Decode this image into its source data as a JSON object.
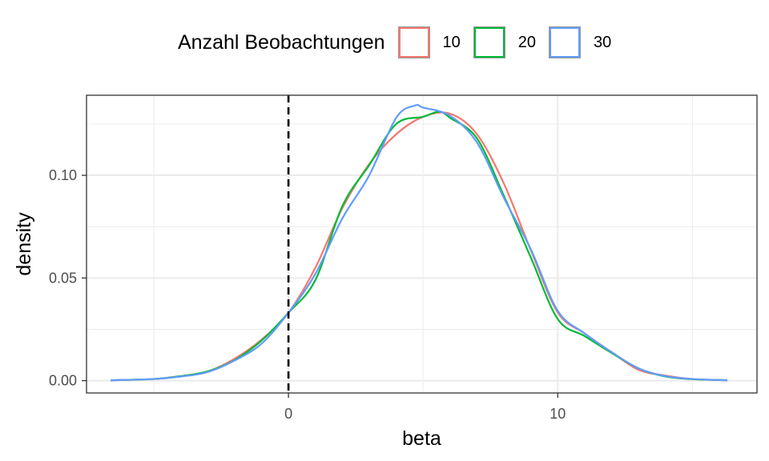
{
  "legend": {
    "title": "Anzahl Beobachtungen",
    "items": [
      {
        "label": "10",
        "color": "#F8766D"
      },
      {
        "label": "20",
        "color": "#00BA38"
      },
      {
        "label": "30",
        "color": "#619CFF"
      }
    ]
  },
  "chart_data": {
    "type": "line",
    "xlabel": "beta",
    "ylabel": "density",
    "xlim": [
      -7.5,
      17.4
    ],
    "ylim": [
      -0.006,
      0.139
    ],
    "x_ticks": [
      0,
      10
    ],
    "x_tick_labels": [
      "0",
      "10"
    ],
    "y_ticks": [
      0,
      0.05,
      0.1
    ],
    "y_tick_labels": [
      "0.00",
      "0.05",
      "0.10"
    ],
    "grid": true,
    "legend_position": "top",
    "reference_line": {
      "x": 0,
      "style": "dashed",
      "color": "#000000"
    },
    "series": [
      {
        "name": "10",
        "color": "#F8766D",
        "x": [
          -6.6,
          -5,
          -4,
          -3,
          -2,
          -1,
          0,
          1,
          2,
          3,
          4,
          5,
          6,
          7,
          8,
          9,
          10,
          11,
          12,
          13,
          14,
          15,
          16.3
        ],
        "y": [
          0.0002,
          0.0008,
          0.0022,
          0.0045,
          0.0107,
          0.02,
          0.0331,
          0.055,
          0.084,
          0.1055,
          0.12,
          0.1285,
          0.13,
          0.12,
          0.096,
          0.0635,
          0.0332,
          0.023,
          0.0139,
          0.0053,
          0.0025,
          0.0008,
          0.0002
        ]
      },
      {
        "name": "20",
        "color": "#00BA38",
        "x": [
          -6.6,
          -5,
          -4,
          -3,
          -2,
          -1,
          0,
          1,
          2,
          3,
          4,
          5,
          5.6,
          6,
          7,
          8,
          9,
          10,
          11,
          12,
          13,
          14,
          15,
          16.3
        ],
        "y": [
          0.0002,
          0.0008,
          0.0022,
          0.0045,
          0.01,
          0.0195,
          0.0331,
          0.049,
          0.085,
          0.105,
          0.125,
          0.1285,
          0.131,
          0.128,
          0.118,
          0.09,
          0.06,
          0.03,
          0.0217,
          0.0135,
          0.006,
          0.002,
          0.0007,
          0.0002
        ]
      },
      {
        "name": "30",
        "color": "#619CFF",
        "x": [
          -6.6,
          -5,
          -4,
          -3,
          -2,
          -1,
          0,
          1,
          2,
          3,
          4,
          4.7,
          5,
          6,
          7,
          8,
          9,
          10,
          11,
          12,
          13,
          14,
          15,
          16.3
        ],
        "y": [
          0.0002,
          0.0008,
          0.002,
          0.0042,
          0.0098,
          0.018,
          0.0331,
          0.052,
          0.079,
          0.1,
          0.128,
          0.134,
          0.133,
          0.129,
          0.116,
          0.089,
          0.064,
          0.034,
          0.023,
          0.0139,
          0.006,
          0.0022,
          0.0008,
          0.0002
        ]
      }
    ]
  }
}
